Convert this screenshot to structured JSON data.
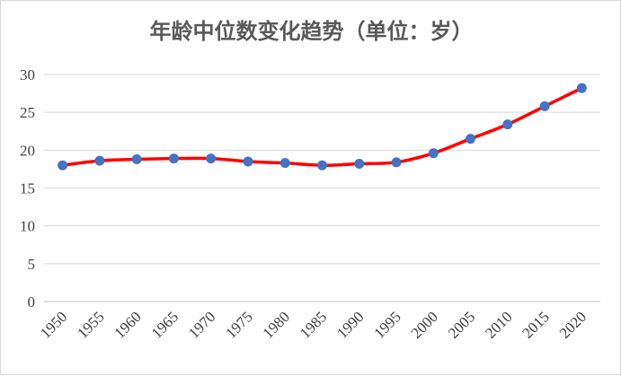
{
  "chart_data": {
    "type": "line",
    "title": "年龄中位数变化趋势（单位：岁）",
    "xlabel": "",
    "ylabel": "",
    "categories": [
      "1950",
      "1955",
      "1960",
      "1965",
      "1970",
      "1975",
      "1980",
      "1985",
      "1990",
      "1995",
      "2000",
      "2005",
      "2010",
      "2015",
      "2020"
    ],
    "series": [
      {
        "values": [
          18.0,
          18.6,
          18.8,
          18.9,
          18.9,
          18.5,
          18.3,
          18.0,
          18.2,
          18.4,
          19.6,
          21.5,
          23.4,
          25.8,
          28.2
        ]
      }
    ],
    "ylim": [
      0,
      30
    ],
    "yticks": [
      0,
      5,
      10,
      15,
      20,
      25,
      30
    ],
    "grid": true,
    "legend": "none",
    "colors": {
      "line": "#ff0000",
      "marker": "#4472c4",
      "grid": "#d9d9d9",
      "axis": "#bfbfbf"
    }
  }
}
